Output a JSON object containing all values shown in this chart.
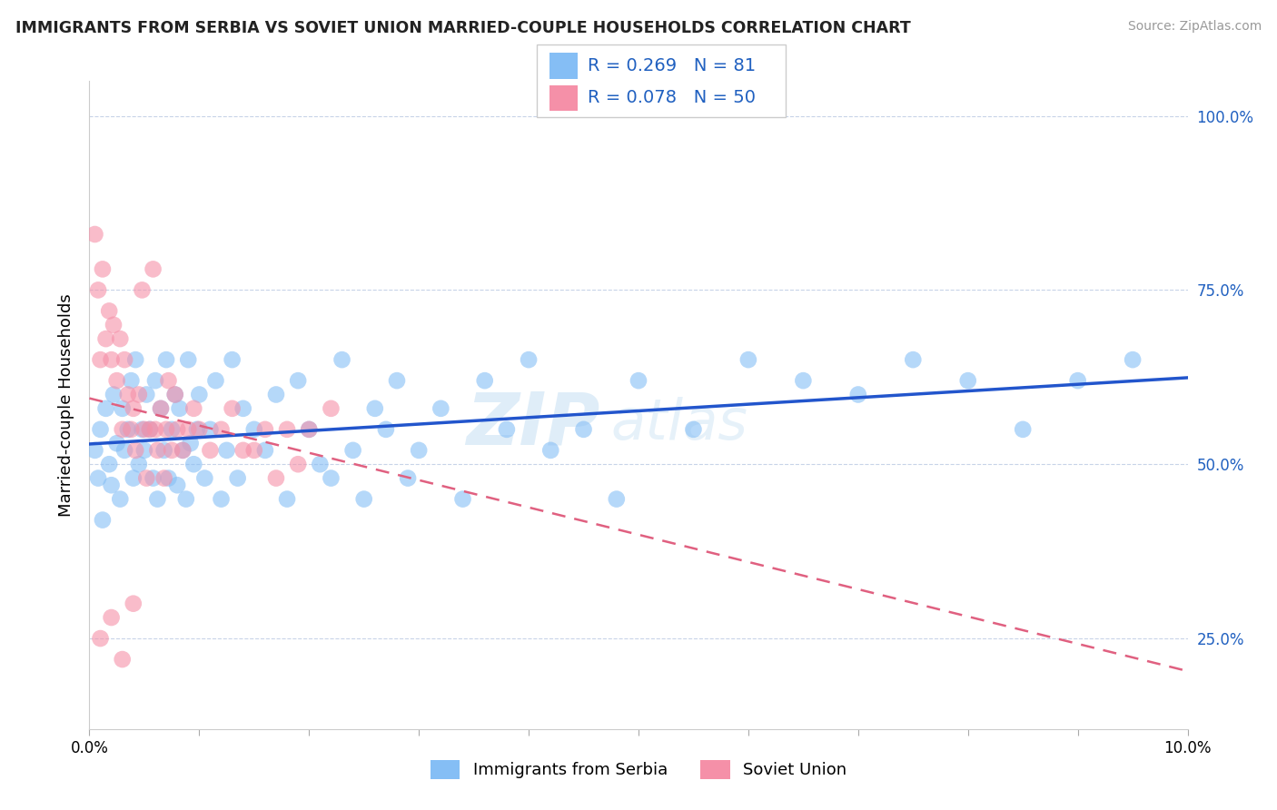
{
  "title": "IMMIGRANTS FROM SERBIA VS SOVIET UNION MARRIED-COUPLE HOUSEHOLDS CORRELATION CHART",
  "source": "Source: ZipAtlas.com",
  "ylabel": "Married-couple Households",
  "xlim": [
    0.0,
    10.0
  ],
  "ylim": [
    12.0,
    105.0
  ],
  "y_ticks_right": [
    25.0,
    50.0,
    75.0,
    100.0
  ],
  "serbia_color": "#85bef5",
  "soviet_color": "#f590a8",
  "serbia_R": 0.269,
  "serbia_N": 81,
  "soviet_R": 0.078,
  "soviet_N": 50,
  "serbia_line_color": "#2255cc",
  "soviet_line_color": "#e06080",
  "grid_color": "#c8d4e8",
  "text_color": "#2060c0",
  "legend1_label": "Immigrants from Serbia",
  "legend2_label": "Soviet Union",
  "serbia_scatter_x": [
    0.05,
    0.08,
    0.1,
    0.12,
    0.15,
    0.18,
    0.2,
    0.22,
    0.25,
    0.28,
    0.3,
    0.32,
    0.35,
    0.38,
    0.4,
    0.42,
    0.45,
    0.48,
    0.5,
    0.52,
    0.55,
    0.58,
    0.6,
    0.62,
    0.65,
    0.68,
    0.7,
    0.72,
    0.75,
    0.78,
    0.8,
    0.82,
    0.85,
    0.88,
    0.9,
    0.92,
    0.95,
    0.98,
    1.0,
    1.05,
    1.1,
    1.15,
    1.2,
    1.25,
    1.3,
    1.35,
    1.4,
    1.5,
    1.6,
    1.7,
    1.8,
    1.9,
    2.0,
    2.1,
    2.2,
    2.3,
    2.4,
    2.5,
    2.6,
    2.7,
    2.8,
    2.9,
    3.0,
    3.2,
    3.4,
    3.6,
    3.8,
    4.0,
    4.2,
    4.5,
    4.8,
    5.0,
    5.5,
    6.0,
    6.5,
    7.0,
    7.5,
    8.0,
    8.5,
    9.0,
    9.5
  ],
  "serbia_scatter_y": [
    52,
    48,
    55,
    42,
    58,
    50,
    47,
    60,
    53,
    45,
    58,
    52,
    55,
    62,
    48,
    65,
    50,
    55,
    52,
    60,
    55,
    48,
    62,
    45,
    58,
    52,
    65,
    48,
    55,
    60,
    47,
    58,
    52,
    45,
    65,
    53,
    50,
    55,
    60,
    48,
    55,
    62,
    45,
    52,
    65,
    48,
    58,
    55,
    52,
    60,
    45,
    62,
    55,
    50,
    48,
    65,
    52,
    45,
    58,
    55,
    62,
    48,
    52,
    58,
    45,
    62,
    55,
    65,
    52,
    55,
    45,
    62,
    55,
    65,
    62,
    60,
    65,
    62,
    55,
    62,
    65
  ],
  "soviet_scatter_x": [
    0.05,
    0.08,
    0.1,
    0.12,
    0.15,
    0.18,
    0.2,
    0.22,
    0.25,
    0.28,
    0.3,
    0.32,
    0.35,
    0.38,
    0.4,
    0.42,
    0.45,
    0.48,
    0.5,
    0.52,
    0.55,
    0.58,
    0.6,
    0.62,
    0.65,
    0.68,
    0.7,
    0.72,
    0.75,
    0.78,
    0.8,
    0.85,
    0.9,
    0.95,
    1.0,
    1.1,
    1.2,
    1.3,
    1.4,
    1.5,
    1.6,
    1.7,
    1.8,
    1.9,
    2.0,
    2.2,
    0.1,
    0.2,
    0.3,
    0.4
  ],
  "soviet_scatter_y": [
    83,
    75,
    65,
    78,
    68,
    72,
    65,
    70,
    62,
    68,
    55,
    65,
    60,
    55,
    58,
    52,
    60,
    75,
    55,
    48,
    55,
    78,
    55,
    52,
    58,
    48,
    55,
    62,
    52,
    60,
    55,
    52,
    55,
    58,
    55,
    52,
    55,
    58,
    52,
    52,
    55,
    48,
    55,
    50,
    55,
    58,
    25,
    28,
    22,
    30
  ]
}
